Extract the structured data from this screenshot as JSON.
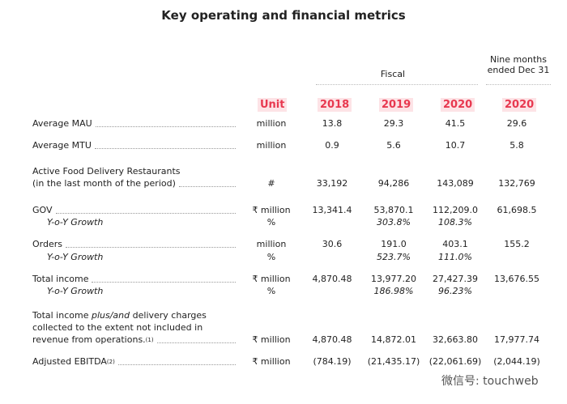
{
  "title": "Key operating and financial metrics",
  "header": {
    "group": "Fiscal",
    "period_lines": [
      "Nine months",
      "ended Dec 31"
    ],
    "columns": [
      "Unit",
      "2018",
      "2019",
      "2020",
      "2020"
    ]
  },
  "rows": [
    {
      "label": "Average MAU",
      "unit": "million",
      "values": [
        "13.8",
        "29.3",
        "41.5",
        "29.6"
      ]
    },
    {
      "label": "Average MTU",
      "unit": "million",
      "values": [
        "0.9",
        "5.6",
        "10.7",
        "5.8"
      ]
    },
    {
      "label_lines": [
        "Active Food Delivery Restaurants",
        "(in the last month of the period)"
      ],
      "unit": "#",
      "values": [
        "33,192",
        "94,286",
        "143,089",
        "132,769"
      ]
    },
    {
      "label": "GOV",
      "unit": "₹ million",
      "values": [
        "13,341.4",
        "53,870.1",
        "112,209.0",
        "61,698.5"
      ],
      "growth": {
        "label": "Y-o-Y Growth",
        "unit": "%",
        "values": [
          null,
          "303.8%",
          "108.3%",
          null
        ]
      }
    },
    {
      "label": "Orders",
      "unit": "million",
      "values": [
        "30.6",
        "191.0",
        "403.1",
        "155.2"
      ],
      "growth": {
        "label": "Y-o-Y Growth",
        "unit": "%",
        "values": [
          null,
          "523.7%",
          "111.0%",
          null
        ]
      }
    },
    {
      "label": "Total income",
      "unit": "₹ million",
      "values": [
        "4,870.48",
        "13,977.20",
        "27,427.39",
        "13,676.55"
      ],
      "growth": {
        "label": "Y-o-Y Growth",
        "unit": "%",
        "values": [
          null,
          "186.98%",
          "96.23%",
          null
        ]
      }
    },
    {
      "label_parts": [
        "Total income",
        "plus/and",
        "delivery charges",
        "collected to the extent not included in",
        "revenue from operations."
      ],
      "note": "(1)",
      "unit": "₹ million",
      "values": [
        "4,870.48",
        "14,872.01",
        "32,663.80",
        "17,977.74"
      ]
    },
    {
      "label": "Adjusted EBITDA",
      "note": "(2)",
      "unit": "₹ million",
      "values": [
        "(784.19)",
        "(21,435.17)",
        "(22,061.69)",
        "(2,044.19)"
      ]
    }
  ],
  "watermark": "微信号: touchweb"
}
